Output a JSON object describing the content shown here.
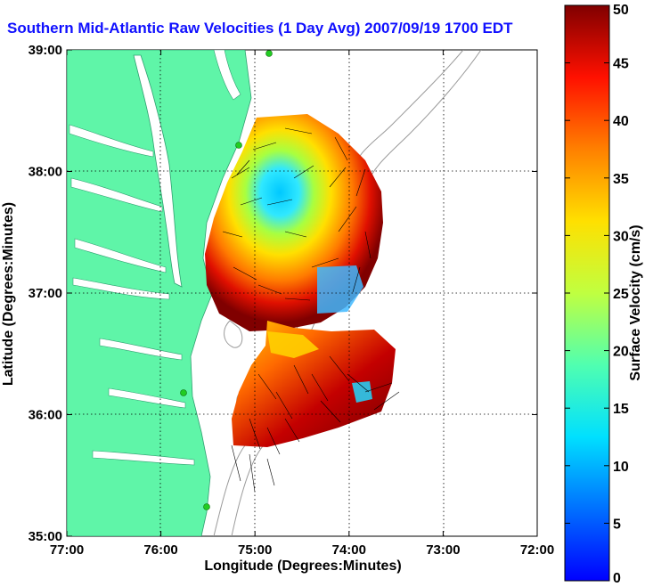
{
  "title": "Southern Mid-Atlantic Raw Velocities (1 Day Avg) 2007/09/19 1700 EDT",
  "x_axis": {
    "label": "Longitude (Degrees:Minutes)",
    "ticks": [
      "77:00",
      "76:00",
      "75:00",
      "74:00",
      "73:00",
      "72:00"
    ]
  },
  "y_axis": {
    "label": "Latitude (Degrees:Minutes)",
    "ticks": [
      "39:00",
      "38:00",
      "37:00",
      "36:00",
      "35:00"
    ]
  },
  "colorbar": {
    "label": "Surface Velocity (cm/s)",
    "ticks": [
      "50",
      "45",
      "40",
      "35",
      "30",
      "25",
      "20",
      "15",
      "10",
      "5",
      "0"
    ],
    "min": 0,
    "max": 50,
    "colormap": "jet"
  },
  "colors": {
    "land": "#5ff5a8",
    "title": "#1010ff",
    "grid": "#000000",
    "bathymetry": "#9a9a9a",
    "station": "#22cc22"
  },
  "grid": true
}
